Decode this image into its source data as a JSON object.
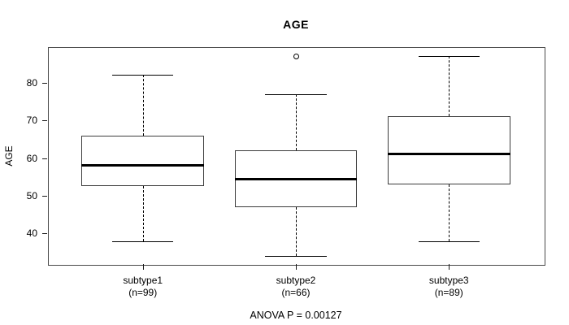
{
  "title": "AGE",
  "annotation": "ANOVA P = 0.00127",
  "chart_data": {
    "type": "boxplot",
    "title": "AGE",
    "xlabel": "",
    "ylabel": "AGE",
    "ylim": [
      31.9,
      89.4
    ],
    "yticks": [
      40,
      50,
      60,
      70,
      80
    ],
    "grid": false,
    "legend": "none",
    "categories": [
      "subtype1",
      "subtype2",
      "subtype3"
    ],
    "groups": [
      {
        "label": "subtype1",
        "sublabel": "(n=99)",
        "n": 99,
        "whisker_low": 38,
        "q1": 52.5,
        "median": 58,
        "q3": 66,
        "whisker_high": 82,
        "outliers": []
      },
      {
        "label": "subtype2",
        "sublabel": "(n=66)",
        "n": 66,
        "whisker_low": 34,
        "q1": 47,
        "median": 54.5,
        "q3": 62,
        "whisker_high": 77,
        "outliers": [
          87
        ]
      },
      {
        "label": "subtype3",
        "sublabel": "(n=89)",
        "n": 89,
        "whisker_low": 38,
        "q1": 53,
        "median": 61,
        "q3": 71,
        "whisker_high": 87,
        "outliers": []
      }
    ],
    "annotation": "ANOVA P = 0.00127",
    "colors": {
      "box_border": "#3c3c3c",
      "median": "#000000",
      "whisker": "#000000",
      "plot_border": "#4a4a4a",
      "background": "#ffffff",
      "text": "#000000"
    }
  }
}
